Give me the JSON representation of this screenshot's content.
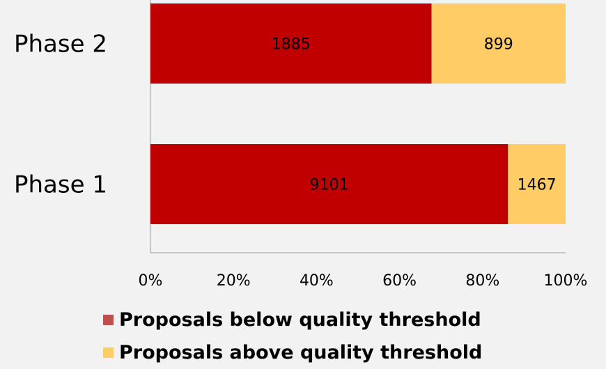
{
  "chart_data": {
    "type": "bar",
    "orientation": "horizontal",
    "stacked": "percent",
    "categories": [
      "Phase 2",
      "Phase 1"
    ],
    "series": [
      {
        "name": "Proposals below quality threshold",
        "values": [
          1885,
          9101
        ],
        "color": "#c00000",
        "legend_color": "#c0504d"
      },
      {
        "name": "Proposals above quality threshold",
        "values": [
          899,
          1467
        ],
        "color": "#ffcc66",
        "legend_color": "#ffcc66"
      }
    ],
    "x_ticks": [
      "0%",
      "20%",
      "40%",
      "60%",
      "80%",
      "100%"
    ],
    "xlim": [
      0,
      100
    ],
    "grid": false,
    "legend_position": "bottom"
  }
}
